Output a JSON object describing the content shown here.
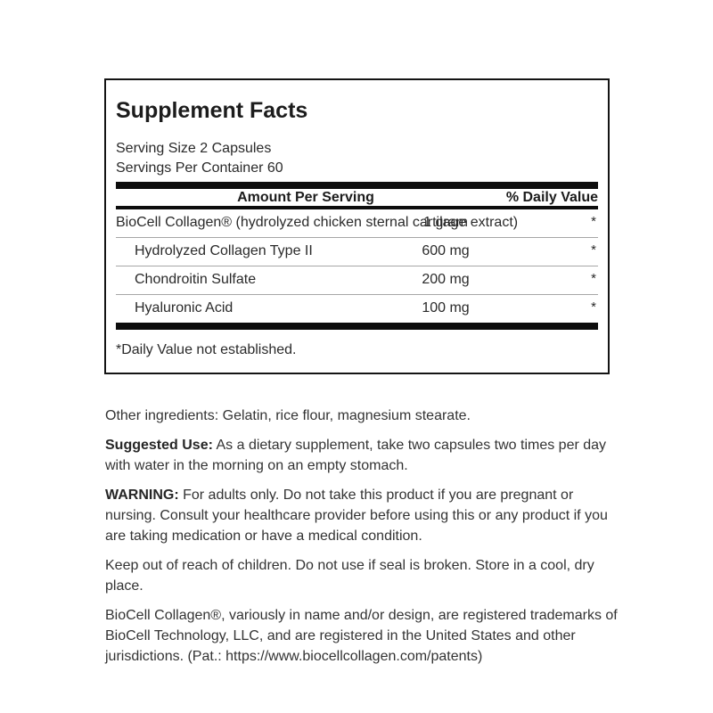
{
  "supplement_facts": {
    "title": "Supplement Facts",
    "serving_size": "Serving Size 2 Capsules",
    "servings_per_container": "Servings Per Container 60",
    "columns": {
      "amount": "Amount Per Serving",
      "daily_value": "% Daily Value"
    },
    "rows": [
      {
        "name": "BioCell Collagen® (hydrolyzed chicken sternal cartilage extract)",
        "amount": "1 gram",
        "daily_value": "*"
      },
      {
        "name": "Hydrolyzed Collagen Type II",
        "amount": "600 mg",
        "daily_value": "*"
      },
      {
        "name": "Chondroitin Sulfate",
        "amount": "200 mg",
        "daily_value": "*"
      },
      {
        "name": "Hyaluronic Acid",
        "amount": "100 mg",
        "daily_value": "*"
      }
    ],
    "footnote": "*Daily Value not established."
  },
  "details": {
    "other_ingredients": "Other ingredients: Gelatin, rice flour, magnesium stearate.",
    "suggested_use": {
      "label": "Suggested Use:",
      "text": " As a dietary supplement, take two capsules two times per day with water in the morning on an empty stomach."
    },
    "warning": {
      "label": "WARNING:",
      "text": " For adults only. Do not take this product if you are pregnant or nursing. Consult your healthcare provider before using this or any product if you are taking medication or have a medical condition."
    },
    "storage": "Keep out of reach of children. Do not use if seal is broken. Store in a cool, dry place.",
    "trademark": "BioCell Collagen®, variously in name and/or design, are registered trademarks of BioCell Technology, LLC, and are registered in the United States and other jurisdictions. (Pat.: https://www.biocellcollagen.com/patents)"
  },
  "colors": {
    "rule": "#0d0d0d",
    "row_divider": "#a6a6a6",
    "text": "#2d2d2d"
  }
}
